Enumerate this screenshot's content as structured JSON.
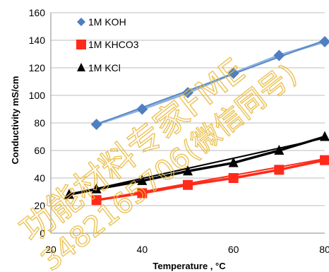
{
  "chart_data": {
    "type": "line",
    "title": "",
    "xlabel": "Temperature , °C",
    "ylabel": "Conductivity mS/cm",
    "xlim": [
      20,
      80
    ],
    "ylim": [
      0,
      160
    ],
    "x_ticks": [
      20,
      40,
      60,
      80
    ],
    "y_ticks": [
      0,
      20,
      40,
      60,
      80,
      100,
      120,
      140,
      160
    ],
    "grid": "horizontal",
    "legend_position": "top-left",
    "series": [
      {
        "name": "1M KOH",
        "marker": "diamond",
        "marker_color": "#4f7fc1",
        "line_color": "#8fb3dd",
        "trend_color": "#5b8bc9",
        "x": [
          30,
          40,
          50,
          60,
          70,
          80
        ],
        "y": [
          79,
          90,
          102,
          116,
          129,
          139
        ],
        "trend": [
          [
            30,
            79
          ],
          [
            80,
            140
          ]
        ]
      },
      {
        "name": "1M KHCO3",
        "marker": "square",
        "marker_color": "#ff2a1a",
        "line_color": "#ff2a1a",
        "trend_color": "#ff2a1a",
        "x": [
          30,
          40,
          50,
          60,
          70,
          80
        ],
        "y": [
          24,
          29,
          35,
          40,
          46,
          53
        ],
        "trend": [
          [
            30,
            24
          ],
          [
            80,
            54
          ]
        ]
      },
      {
        "name": "1M KCl",
        "marker": "triangle",
        "marker_color": "#000000",
        "line_color": "#000000",
        "trend_color": "#000000",
        "x": [
          24,
          30,
          40,
          50,
          60,
          70,
          80
        ],
        "y": [
          28,
          32,
          38,
          45,
          51,
          60,
          70
        ],
        "trend": [
          [
            24,
            28
          ],
          [
            80,
            69
          ]
        ]
      }
    ]
  },
  "watermark": {
    "line1": "功能材料专家FME",
    "line2": "3482165706(微信同号)",
    "color": "#e8b838"
  }
}
